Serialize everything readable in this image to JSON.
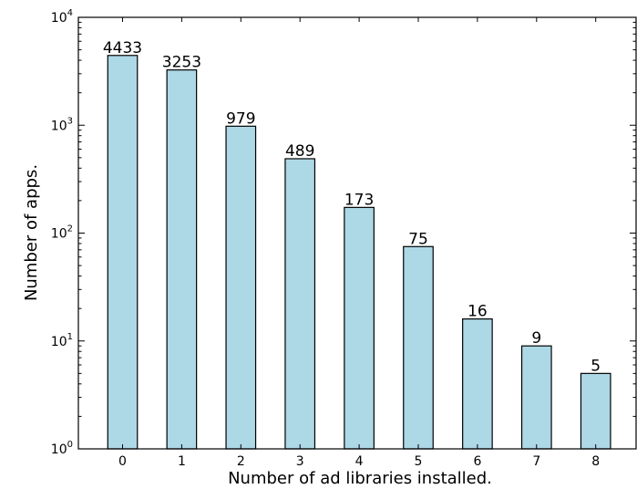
{
  "chart_data": {
    "type": "bar",
    "title": "",
    "xlabel": "Number of ad libraries installed.",
    "ylabel": "Number of apps.",
    "y_scale": "log",
    "ylim": [
      1,
      10000
    ],
    "y_ticks": [
      {
        "value": 1,
        "base": "10",
        "exp": "0"
      },
      {
        "value": 10,
        "base": "10",
        "exp": "1"
      },
      {
        "value": 100,
        "base": "10",
        "exp": "2"
      },
      {
        "value": 1000,
        "base": "10",
        "exp": "3"
      },
      {
        "value": 10000,
        "base": "10",
        "exp": "4"
      }
    ],
    "categories": [
      "0",
      "1",
      "2",
      "3",
      "4",
      "5",
      "6",
      "7",
      "8"
    ],
    "values": [
      4433,
      3253,
      979,
      489,
      173,
      75,
      16,
      9,
      5
    ],
    "data_labels": [
      "4433",
      "3253",
      "979",
      "489",
      "173",
      "75",
      "16",
      "9",
      "5"
    ],
    "bar_color": "#add8e6",
    "edge_color": "#000000",
    "grid": false,
    "legend": "none"
  }
}
